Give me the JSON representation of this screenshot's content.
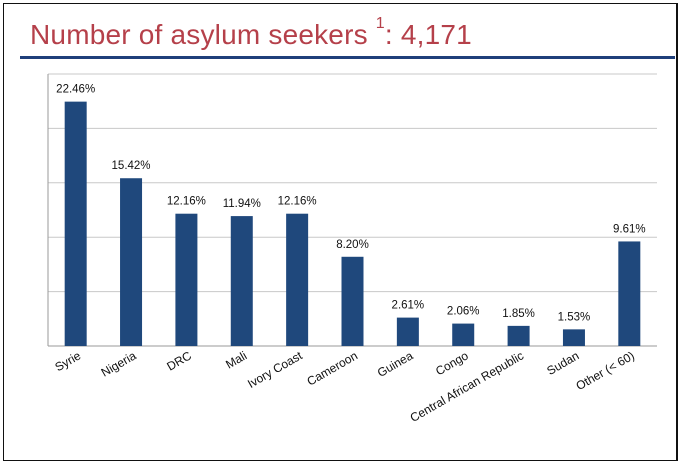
{
  "title": "Number of asylum seekers",
  "title_superscript": "1",
  "title_value": ": 4,171",
  "colors": {
    "bar": "#1f487c",
    "title": "#b5404a",
    "rule": "#1f3f7a",
    "grid": "#c8c8c8"
  },
  "chart_data": {
    "type": "bar",
    "title": "Number of asylum seekers 1: 4,171",
    "xlabel": "",
    "ylabel": "",
    "ylim": [
      0,
      25
    ],
    "grid": true,
    "legend": "none",
    "categories": [
      "Syrie",
      "Nigeria",
      "DRC",
      "Mali",
      "Ivory Coast",
      "Cameroon",
      "Guinea",
      "Congo",
      "Central African Republic",
      "Sudan",
      "Other (< 60)"
    ],
    "values": [
      22.46,
      15.42,
      12.16,
      11.94,
      12.16,
      8.2,
      2.61,
      2.06,
      1.85,
      1.53,
      9.61
    ],
    "data_labels": [
      "22.46%",
      "15.42%",
      "12.16%",
      "11.94%",
      "12.16%",
      "8.20%",
      "2.61%",
      "2.06%",
      "1.85%",
      "1.53%",
      "9.61%"
    ]
  }
}
